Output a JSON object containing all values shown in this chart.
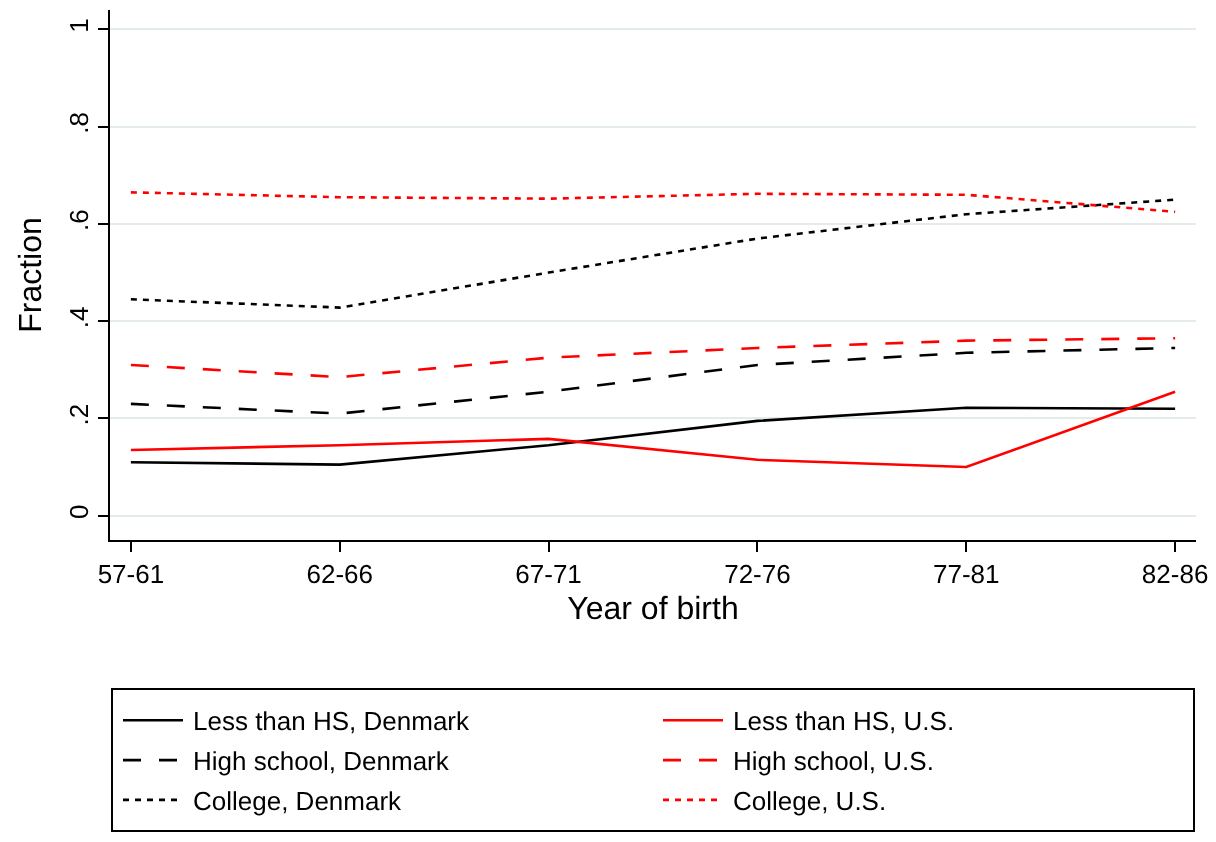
{
  "chart_data": {
    "type": "line",
    "xlabel": "Year of birth",
    "ylabel": "Fraction",
    "categories": [
      "57-61",
      "62-66",
      "67-71",
      "72-76",
      "77-81",
      "82-86"
    ],
    "series": [
      {
        "name": "Less than HS, Denmark",
        "color": "#000000",
        "line_style": "solid",
        "values": [
          0.11,
          0.105,
          0.145,
          0.195,
          0.222,
          0.22
        ]
      },
      {
        "name": "Less than HS, U.S.",
        "color": "#ff0000",
        "line_style": "solid",
        "values": [
          0.135,
          0.145,
          0.158,
          0.115,
          0.1,
          0.255
        ]
      },
      {
        "name": "High school, Denmark",
        "color": "#000000",
        "line_style": "dashed",
        "values": [
          0.23,
          0.21,
          0.255,
          0.31,
          0.335,
          0.345
        ]
      },
      {
        "name": "High school, U.S.",
        "color": "#ff0000",
        "line_style": "dashed",
        "values": [
          0.31,
          0.285,
          0.325,
          0.345,
          0.36,
          0.365
        ]
      },
      {
        "name": "College, Denmark",
        "color": "#000000",
        "line_style": "dotted",
        "values": [
          0.445,
          0.428,
          0.5,
          0.57,
          0.62,
          0.65
        ]
      },
      {
        "name": "College, U.S.",
        "color": "#ff0000",
        "line_style": "dotted",
        "values": [
          0.665,
          0.655,
          0.652,
          0.662,
          0.66,
          0.625
        ]
      }
    ],
    "ylim": [
      -0.05,
      1.04
    ],
    "yticks": [
      0,
      {
        "value": 0.2,
        "label": ".2"
      },
      {
        "value": 0.4,
        "label": ".4"
      },
      {
        "value": 0.6,
        "label": ".6"
      },
      {
        "value": 0.8,
        "label": ".8"
      },
      1
    ],
    "grid": "y",
    "legend": "bottom",
    "marker": "none"
  }
}
